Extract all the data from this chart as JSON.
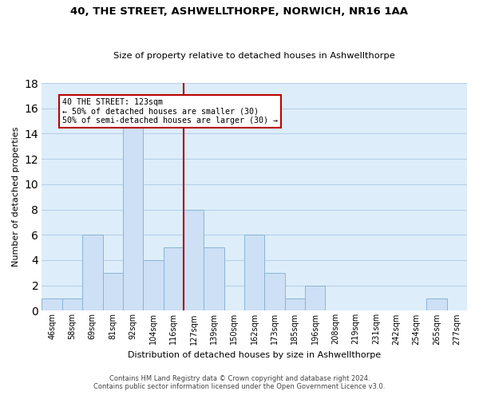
{
  "title": "40, THE STREET, ASHWELLTHORPE, NORWICH, NR16 1AA",
  "subtitle": "Size of property relative to detached houses in Ashwellthorpe",
  "xlabel": "Distribution of detached houses by size in Ashwellthorpe",
  "ylabel": "Number of detached properties",
  "bin_labels": [
    "46sqm",
    "58sqm",
    "69sqm",
    "81sqm",
    "92sqm",
    "104sqm",
    "116sqm",
    "127sqm",
    "139sqm",
    "150sqm",
    "162sqm",
    "173sqm",
    "185sqm",
    "196sqm",
    "208sqm",
    "219sqm",
    "231sqm",
    "242sqm",
    "254sqm",
    "265sqm",
    "277sqm"
  ],
  "bar_values": [
    1,
    1,
    6,
    3,
    15,
    4,
    5,
    8,
    5,
    0,
    6,
    3,
    1,
    2,
    0,
    0,
    0,
    0,
    0,
    1,
    0
  ],
  "bar_color": "#cde0f5",
  "bar_edge_color": "#8ab4d8",
  "grid_color": "#b8cfe8",
  "background_color": "#ddeefa",
  "vline_idx": 7,
  "vline_color": "#aa0000",
  "annotation_line1": "40 THE STREET: 123sqm",
  "annotation_line2": "← 50% of detached houses are smaller (30)",
  "annotation_line3": "50% of semi-detached houses are larger (30) →",
  "annotation_box_edgecolor": "#bb0000",
  "ylim": [
    0,
    18
  ],
  "yticks": [
    0,
    2,
    4,
    6,
    8,
    10,
    12,
    14,
    16,
    18
  ],
  "footer1": "Contains HM Land Registry data © Crown copyright and database right 2024.",
  "footer2": "Contains public sector information licensed under the Open Government Licence v3.0."
}
